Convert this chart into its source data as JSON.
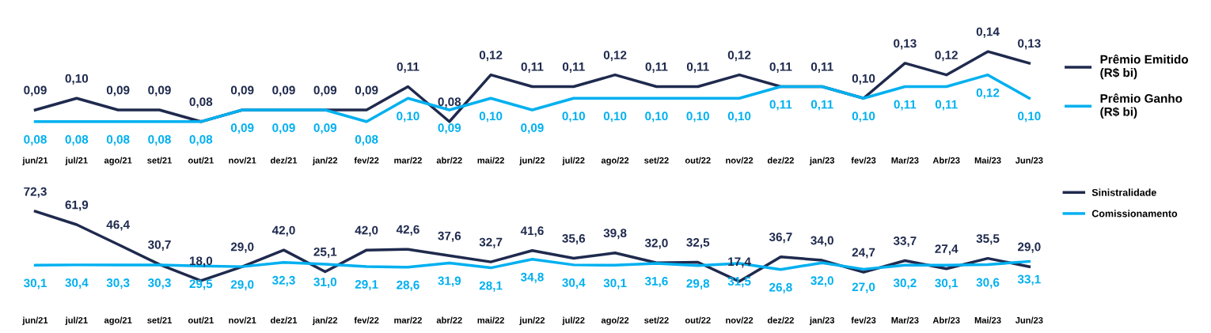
{
  "chart_data": [
    {
      "type": "line",
      "categories": [
        "jun/21",
        "jul/21",
        "ago/21",
        "set/21",
        "out/21",
        "nov/21",
        "dez/21",
        "jan/22",
        "fev/22",
        "mar/22",
        "abr/22",
        "mai/22",
        "jun/22",
        "jul/22",
        "ago/22",
        "set/22",
        "out/22",
        "nov/22",
        "dez/22",
        "jan/23",
        "fev/23",
        "Mar/23",
        "Abr/23",
        "Mai/23",
        "Jun/23"
      ],
      "series": [
        {
          "name": "Prêmio Emitido\n(R$ bi)",
          "color": "#1f2a4e",
          "values": [
            0.09,
            0.1,
            0.09,
            0.09,
            0.08,
            0.09,
            0.09,
            0.09,
            0.09,
            0.11,
            0.08,
            0.12,
            0.11,
            0.11,
            0.12,
            0.11,
            0.11,
            0.12,
            0.11,
            0.11,
            0.1,
            0.13,
            0.12,
            0.14,
            0.13
          ],
          "value_labels": [
            "0,09",
            "0,10",
            "0,09",
            "0,09",
            "0,08",
            "0,09",
            "0,09",
            "0,09",
            "0,09",
            "0,11",
            "0,08",
            "0,12",
            "0,11",
            "0,11",
            "0,12",
            "0,11",
            "0,11",
            "0,12",
            "0,11",
            "0,11",
            "0,10",
            "0,13",
            "0,12",
            "0,14",
            "0,13"
          ]
        },
        {
          "name": "Prêmio Ganho\n(R$ bi)",
          "color": "#00b0f0",
          "values": [
            0.08,
            0.08,
            0.08,
            0.08,
            0.08,
            0.09,
            0.09,
            0.09,
            0.08,
            0.1,
            0.09,
            0.1,
            0.09,
            0.1,
            0.1,
            0.1,
            0.1,
            0.1,
            0.11,
            0.11,
            0.1,
            0.11,
            0.11,
            0.12,
            0.1
          ],
          "value_labels": [
            "0,08",
            "0,08",
            "0,08",
            "0,08",
            "0,08",
            "0,09",
            "0,09",
            "0,09",
            "0,08",
            "0,10",
            "0,09",
            "0,10",
            "0,09",
            "0,10",
            "0,10",
            "0,10",
            "0,10",
            "0,10",
            "0,11",
            "0,11",
            "0,10",
            "0,11",
            "0,11",
            "0,12",
            "0,10"
          ]
        }
      ],
      "legend": "right",
      "grid": false,
      "marker": "none",
      "line_style": "solid",
      "tick_labels": "x"
    },
    {
      "type": "line",
      "categories": [
        "jun/21",
        "jul/21",
        "ago/21",
        "set/21",
        "out/21",
        "nov/21",
        "dez/21",
        "jan/22",
        "fev/22",
        "mar/22",
        "abr/22",
        "mai/22",
        "jun/22",
        "jul/22",
        "ago/22",
        "set/22",
        "out/22",
        "nov/22",
        "dez/22",
        "jan/23",
        "fev/23",
        "Mar/23",
        "Abr/23",
        "Mai/23",
        "Jun/23"
      ],
      "series": [
        {
          "name": "Sinistralidade",
          "color": "#1f2a4e",
          "values": [
            72.3,
            61.9,
            46.4,
            30.7,
            18.0,
            29.0,
            42.0,
            25.1,
            42.0,
            42.6,
            37.6,
            32.7,
            41.6,
            35.6,
            39.8,
            32.0,
            32.5,
            17.4,
            36.7,
            34.0,
            24.7,
            33.7,
            27.4,
            35.5,
            29.0
          ],
          "value_labels": [
            "72,3",
            "61,9",
            "46,4",
            "30,7",
            "18,0",
            "29,0",
            "42,0",
            "25,1",
            "42,0",
            "42,6",
            "37,6",
            "32,7",
            "41,6",
            "35,6",
            "39,8",
            "32,0",
            "32,5",
            "17,4",
            "36,7",
            "34,0",
            "24,7",
            "33,7",
            "27,4",
            "35,5",
            "29,0"
          ]
        },
        {
          "name": "Comissionamento",
          "color": "#00b0f0",
          "values": [
            30.1,
            30.4,
            30.3,
            30.3,
            29.5,
            29.0,
            32.3,
            31.0,
            29.1,
            28.6,
            31.9,
            28.1,
            34.8,
            30.4,
            30.1,
            31.6,
            29.8,
            31.5,
            26.8,
            32.0,
            27.0,
            30.2,
            30.1,
            30.6,
            33.1
          ],
          "value_labels": [
            "30,1",
            "30,4",
            "30,3",
            "30,3",
            "29,5",
            "29,0",
            "32,3",
            "31,0",
            "29,1",
            "28,6",
            "31,9",
            "28,1",
            "34,8",
            "30,4",
            "30,1",
            "31,6",
            "29,8",
            "31,5",
            "26,8",
            "32,0",
            "27,0",
            "30,2",
            "30,1",
            "30,6",
            "33,1"
          ]
        }
      ],
      "legend": "top right",
      "grid": false,
      "marker": "none",
      "line_style": "solid",
      "tick_labels": "x"
    }
  ]
}
